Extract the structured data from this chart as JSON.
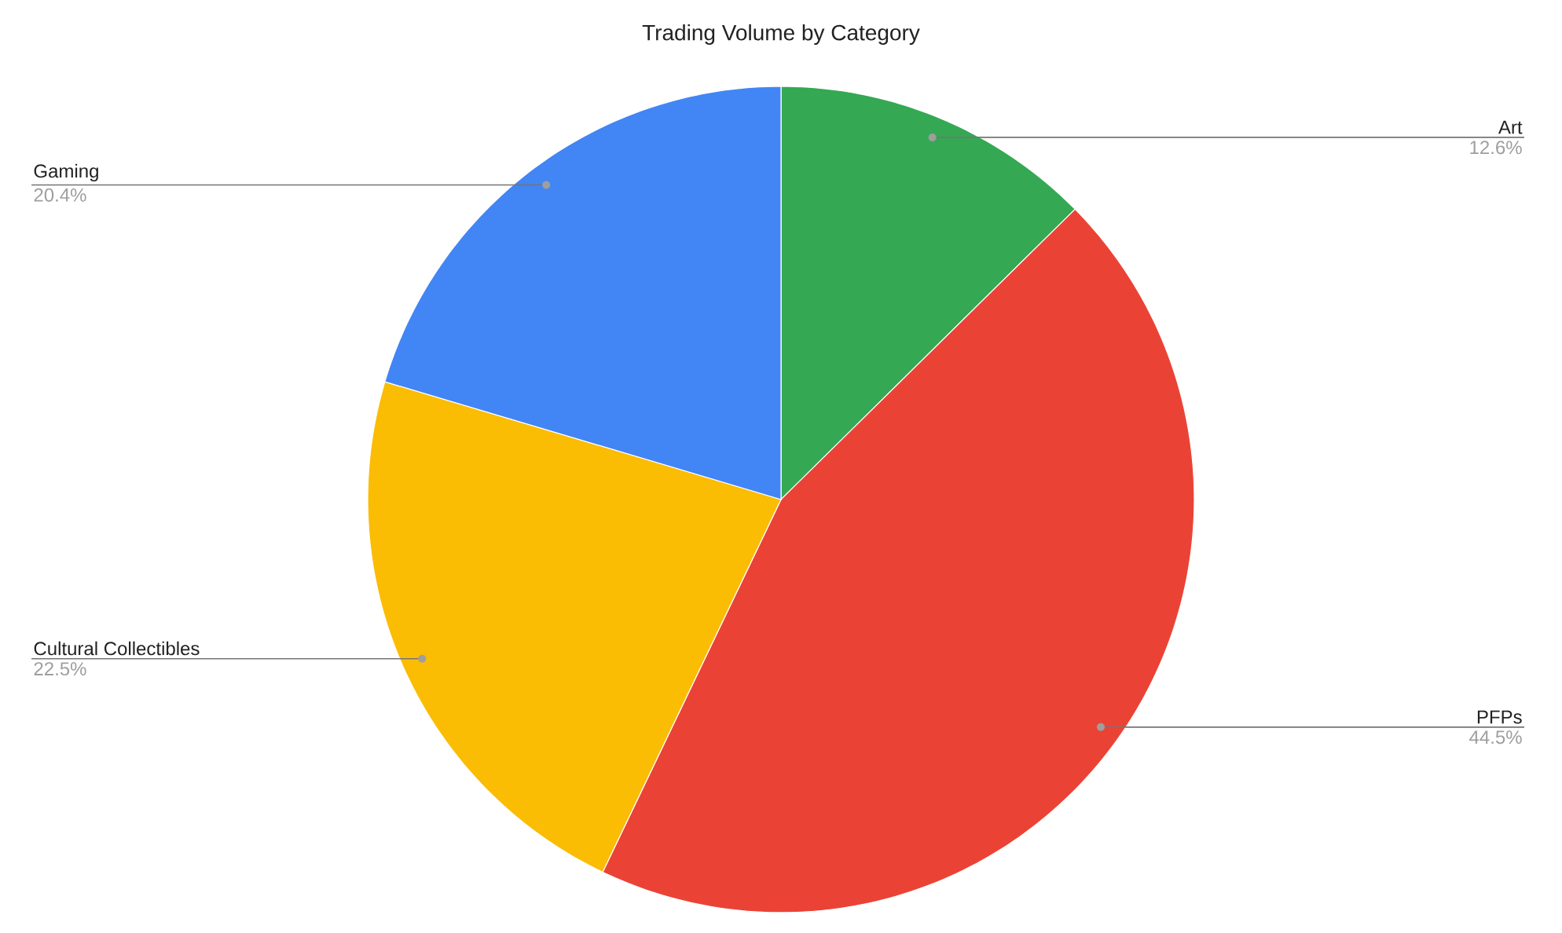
{
  "chart_data": {
    "type": "pie",
    "title": "Trading Volume by Category",
    "categories": [
      "Art",
      "PFPs",
      "Cultural Collectibles",
      "Gaming"
    ],
    "values": [
      12.6,
      44.5,
      22.5,
      20.4
    ],
    "value_labels": [
      "12.6%",
      "44.5%",
      "22.5%",
      "20.4%"
    ],
    "colors": [
      "#34a853",
      "#ea4335",
      "#fbbc04",
      "#4285f4"
    ]
  }
}
